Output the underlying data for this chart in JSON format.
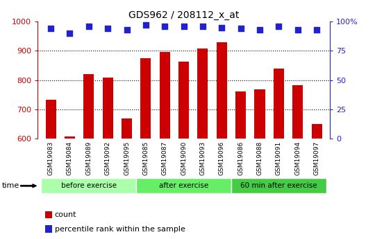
{
  "title": "GDS962 / 208112_x_at",
  "categories": [
    "GSM19083",
    "GSM19084",
    "GSM19089",
    "GSM19092",
    "GSM19095",
    "GSM19085",
    "GSM19087",
    "GSM19090",
    "GSM19093",
    "GSM19096",
    "GSM19086",
    "GSM19088",
    "GSM19091",
    "GSM19094",
    "GSM19097"
  ],
  "counts": [
    733,
    608,
    820,
    808,
    668,
    875,
    895,
    862,
    908,
    928,
    760,
    768,
    840,
    782,
    650
  ],
  "percentiles": [
    94,
    90,
    96,
    94,
    93,
    97,
    96,
    96,
    96,
    95,
    94,
    93,
    96,
    93,
    93
  ],
  "groups": [
    {
      "label": "before exercise",
      "start": 0,
      "end": 5,
      "color": "#aaffaa"
    },
    {
      "label": "after exercise",
      "start": 5,
      "end": 10,
      "color": "#66ee66"
    },
    {
      "label": "60 min after exercise",
      "start": 10,
      "end": 15,
      "color": "#44cc44"
    }
  ],
  "ylim": [
    600,
    1000
  ],
  "y2lim": [
    0,
    100
  ],
  "yticks": [
    600,
    700,
    800,
    900,
    1000
  ],
  "y2ticks": [
    0,
    25,
    50,
    75,
    100
  ],
  "bar_color": "#cc0000",
  "dot_color": "#2222cc",
  "bar_width": 0.55,
  "dot_size": 28,
  "dot_marker": "s",
  "grid_color": "#000000",
  "bg_color": "#ffffff",
  "tick_label_area_color": "#cccccc",
  "legend_count_label": "count",
  "legend_pct_label": "percentile rank within the sample",
  "time_label": "time",
  "figsize": [
    5.4,
    3.45
  ],
  "dpi": 100
}
